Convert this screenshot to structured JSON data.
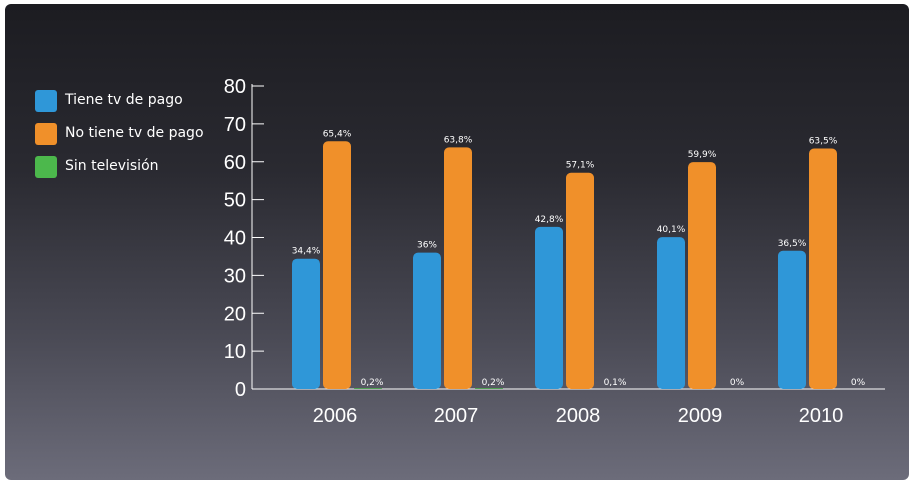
{
  "chart_data": {
    "type": "bar",
    "categories": [
      "2006",
      "2007",
      "2008",
      "2009",
      "2010"
    ],
    "series": [
      {
        "name": "Tiene tv de pago",
        "color": "#2f97d8",
        "values": [
          34.4,
          36,
          42.8,
          40.1,
          36.5
        ],
        "labels": [
          "34,4%",
          "36%",
          "42,8%",
          "40,1%",
          "36,5%"
        ]
      },
      {
        "name": "No tiene tv de pago",
        "color": "#f0902a",
        "values": [
          65.4,
          63.8,
          57.1,
          59.9,
          63.5
        ],
        "labels": [
          "65,4%",
          "63,8%",
          "57,1%",
          "59,9%",
          "63,5%"
        ]
      },
      {
        "name": "Sin televisión",
        "color": "#4cb84c",
        "values": [
          0.2,
          0.2,
          0.1,
          0,
          0
        ],
        "labels": [
          "0,2%",
          "0,2%",
          "0,1%",
          "0%",
          "0%"
        ]
      }
    ],
    "yticks": [
      "0",
      "10",
      "20",
      "30",
      "40",
      "50",
      "60",
      "70",
      "80"
    ],
    "ylim": [
      0,
      80
    ],
    "legend_position": "left",
    "grid": false
  }
}
